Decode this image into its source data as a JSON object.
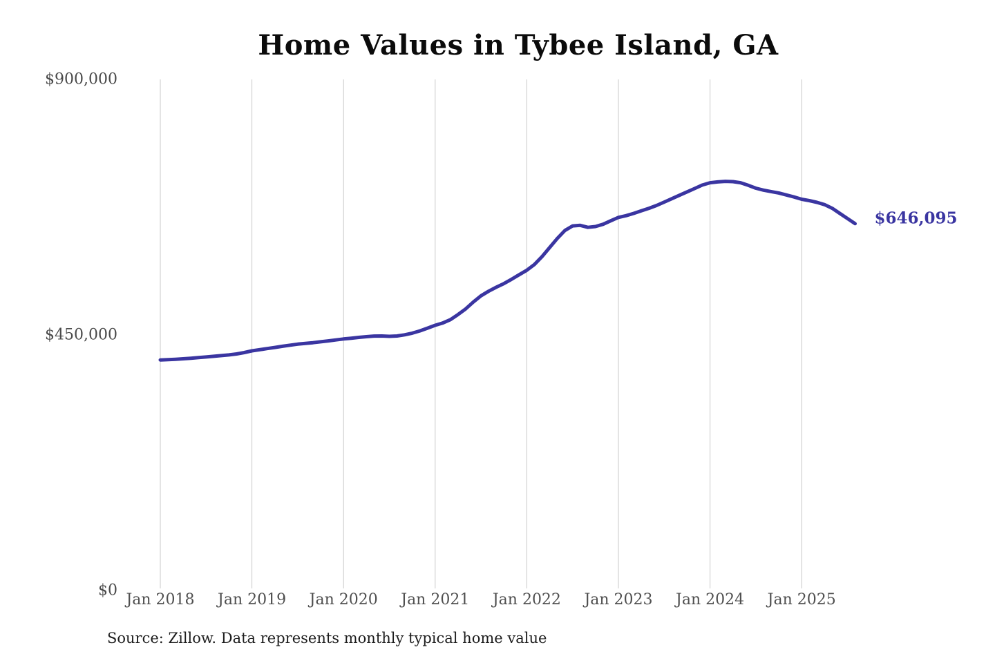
{
  "chart": {
    "title": "Home Values in Tybee Island, GA",
    "end_label": "$646,095",
    "source_note": "Source: Zillow. Data represents monthly typical home value",
    "line_color": "#3a35a1",
    "grid_color": "#c9c9c9",
    "axis_label_color": "#4a4a4a",
    "end_label_color": "#3a35a1"
  },
  "chart_data": {
    "type": "line",
    "title": "Home Values in Tybee Island, GA",
    "series_name": "Typical home value",
    "frequency": "monthly",
    "start_month": "2018-01",
    "end_month": "2025-08",
    "x_tick_labels": [
      "Jan 2018",
      "Jan 2019",
      "Jan 2020",
      "Jan 2021",
      "Jan 2022",
      "Jan 2023",
      "Jan 2024",
      "Jan 2025"
    ],
    "y_ticks": [
      {
        "value": 0,
        "label": "$0"
      },
      {
        "value": 450000,
        "label": "$450,000"
      },
      {
        "value": 900000,
        "label": "$900,000"
      }
    ],
    "ylim": [
      0,
      900000
    ],
    "grid": "vertical-only",
    "legend": "none",
    "final_value": 646095,
    "final_value_label": "$646,095",
    "values": [
      406000,
      406500,
      407200,
      408000,
      409000,
      410200,
      411200,
      412400,
      413600,
      414800,
      416500,
      419000,
      422000,
      424000,
      426000,
      428000,
      430000,
      432000,
      433800,
      435200,
      436400,
      437900,
      439500,
      441200,
      443000,
      444300,
      445800,
      447000,
      448000,
      448200,
      447600,
      448200,
      450200,
      453200,
      457200,
      462000,
      467000,
      471000,
      477000,
      486000,
      496000,
      508000,
      519000,
      527000,
      534000,
      540500,
      548000,
      556000,
      564000,
      574000,
      588000,
      604000,
      620000,
      634000,
      642000,
      643000,
      639500,
      641000,
      645000,
      651000,
      657000,
      660000,
      664000,
      668500,
      673000,
      678000,
      684000,
      690000,
      696000,
      702000,
      708000,
      714000,
      718000,
      719500,
      720500,
      720000,
      718000,
      713500,
      708500,
      705000,
      702500,
      700000,
      696500,
      693000,
      689000,
      686500,
      683500,
      679500,
      673000,
      664000,
      655000,
      646095
    ]
  }
}
